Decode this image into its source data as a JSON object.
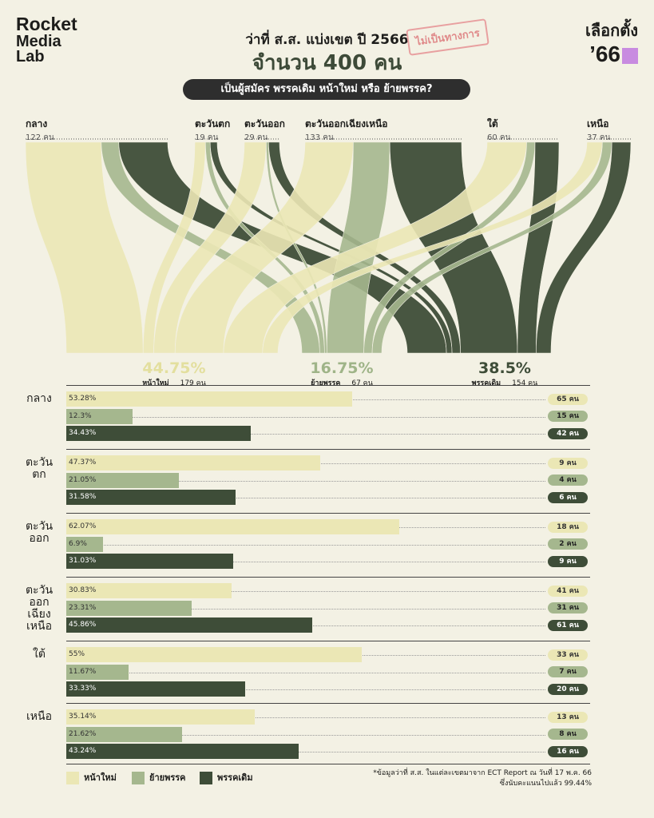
{
  "brand": {
    "line1": "Rocket",
    "line2": "Media",
    "line3": "Lab"
  },
  "header": {
    "title1": "ว่าที่ ส.ส. แบ่งเขต ปี 2566",
    "title2": "จำนวน 400 คน",
    "stamp": "ไม่เป็นทางการ",
    "question": "เป็นผู้สมัคร พรรคเดิม หน้าใหม่ หรือ ย้ายพรรค?"
  },
  "badge": {
    "line1": "เลือกตั้ง",
    "line2": "’66"
  },
  "colors": {
    "new": "#ebe7b5",
    "switch": "#a5b78e",
    "old": "#3e4d38"
  },
  "chart_data": {
    "type": "bar",
    "sources": [
      {
        "name": "กลาง",
        "count_label": "122 คน"
      },
      {
        "name": "ตะวันตก",
        "count_label": "19 คน"
      },
      {
        "name": "ตะวันออก",
        "count_label": "29 คน"
      },
      {
        "name": "ตะวันออกเฉียงเหนือ",
        "count_label": "133 คน"
      },
      {
        "name": "ใต้",
        "count_label": "60 คน"
      },
      {
        "name": "เหนือ",
        "count_label": "37 คน"
      }
    ],
    "destinations": [
      {
        "name": "หน้าใหม่",
        "pct": "44.75%",
        "count_label": "179 คน"
      },
      {
        "name": "ย้ายพรรค",
        "pct": "16.75%",
        "count_label": "67 คน"
      },
      {
        "name": "พรรคเดิม",
        "pct": "38.5%",
        "count_label": "154 คน"
      }
    ],
    "regions": [
      {
        "name": "กลาง",
        "bars": [
          {
            "pct": 53.28,
            "label": "53.28%",
            "count": 65,
            "count_label": "65 คน"
          },
          {
            "pct": 12.3,
            "label": "12.3%",
            "count": 15,
            "count_label": "15 คน"
          },
          {
            "pct": 34.43,
            "label": "34.43%",
            "count": 42,
            "count_label": "42 คน"
          }
        ]
      },
      {
        "name": "ตะวัน\nตก",
        "bars": [
          {
            "pct": 47.37,
            "label": "47.37%",
            "count": 9,
            "count_label": "9 คน"
          },
          {
            "pct": 21.05,
            "label": "21.05%",
            "count": 4,
            "count_label": "4 คน"
          },
          {
            "pct": 31.58,
            "label": "31.58%",
            "count": 6,
            "count_label": "6 คน"
          }
        ]
      },
      {
        "name": "ตะวัน\nออก",
        "bars": [
          {
            "pct": 62.07,
            "label": "62.07%",
            "count": 18,
            "count_label": "18 คน"
          },
          {
            "pct": 6.9,
            "label": "6.9%",
            "count": 2,
            "count_label": "2 คน"
          },
          {
            "pct": 31.03,
            "label": "31.03%",
            "count": 9,
            "count_label": "9 คน"
          }
        ]
      },
      {
        "name": "ตะวัน\nออก\nเฉียง\nเหนือ",
        "bars": [
          {
            "pct": 30.83,
            "label": "30.83%",
            "count": 41,
            "count_label": "41 คน"
          },
          {
            "pct": 23.31,
            "label": "23.31%",
            "count": 31,
            "count_label": "31 คน"
          },
          {
            "pct": 45.86,
            "label": "45.86%",
            "count": 61,
            "count_label": "61 คน"
          }
        ]
      },
      {
        "name": "ใต้",
        "bars": [
          {
            "pct": 55,
            "label": "55%",
            "count": 33,
            "count_label": "33 คน"
          },
          {
            "pct": 11.67,
            "label": "11.67%",
            "count": 7,
            "count_label": "7 คน"
          },
          {
            "pct": 33.33,
            "label": "33.33%",
            "count": 20,
            "count_label": "20 คน"
          }
        ]
      },
      {
        "name": "เหนือ",
        "bars": [
          {
            "pct": 35.14,
            "label": "35.14%",
            "count": 13,
            "count_label": "13 คน"
          },
          {
            "pct": 21.62,
            "label": "21.62%",
            "count": 8,
            "count_label": "8 คน"
          },
          {
            "pct": 43.24,
            "label": "43.24%",
            "count": 16,
            "count_label": "16 คน"
          }
        ]
      }
    ]
  },
  "legend": {
    "new": "หน้าใหม่",
    "switch": "ย้ายพรรค",
    "old": "พรรคเดิม"
  },
  "note": {
    "line1": "*ข้อมูลว่าที่ ส.ส. ในแต่ละเขตมาจาก ECT Report ณ วันที่ 17 พ.ค. 66",
    "line2": "ซึ่งนับคะแนนไปแล้ว 99.44%"
  }
}
